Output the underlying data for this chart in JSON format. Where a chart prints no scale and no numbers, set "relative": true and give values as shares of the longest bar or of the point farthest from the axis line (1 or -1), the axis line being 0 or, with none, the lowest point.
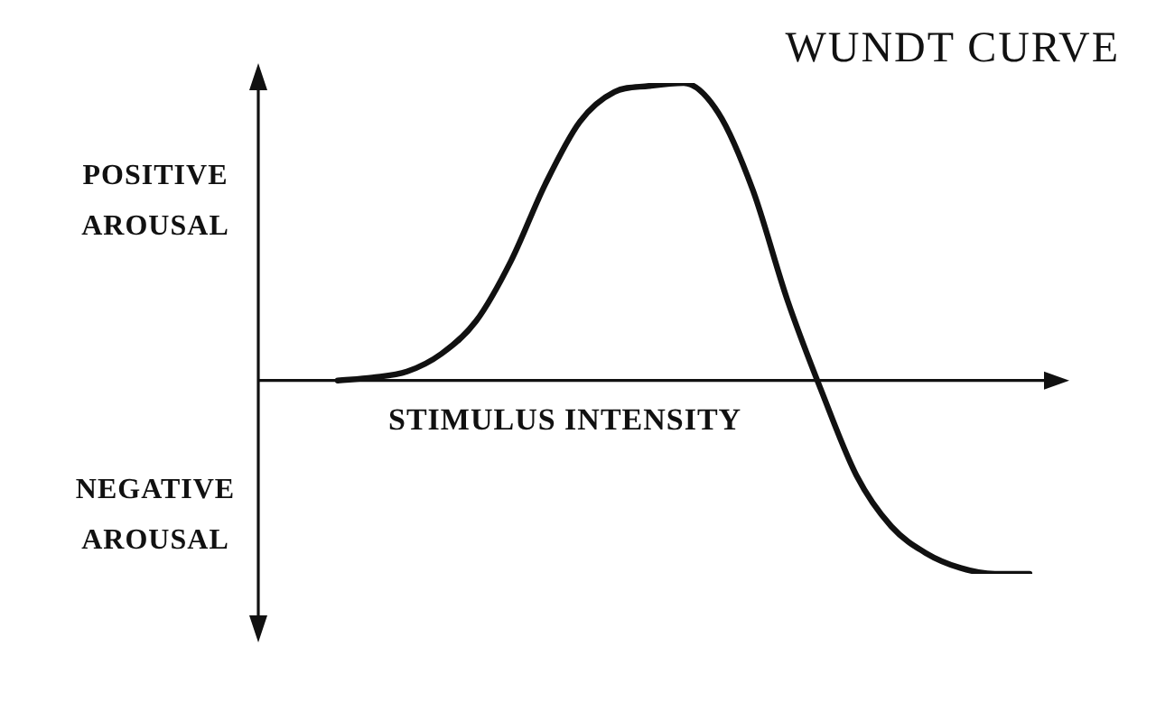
{
  "chart_data": {
    "type": "line",
    "relative": true,
    "title": "WUNDT CURVE",
    "xlabel": "STIMULUS INTENSITY",
    "annotations": [
      "POSITIVE AROUSAL",
      "NEGATIVE AROUSAL"
    ],
    "categories": [
      null,
      null,
      null,
      null,
      null,
      null,
      null,
      null,
      null,
      null,
      null,
      null,
      null,
      null,
      null,
      null,
      null,
      null,
      null,
      null,
      null
    ],
    "series": [
      {
        "color": "#111111",
        "values": [
          0,
          0.01,
          0.03,
          0.09,
          0.2,
          0.4,
          0.66,
          0.87,
          0.97,
          0.99,
          1,
          0.9,
          0.64,
          0.27,
          -0.04,
          -0.32,
          -0.49,
          -0.58,
          -0.63,
          -0.65,
          -0.65
        ]
      }
    ],
    "marker": "none",
    "line_style": "solid",
    "grid": false,
    "legend": false
  }
}
